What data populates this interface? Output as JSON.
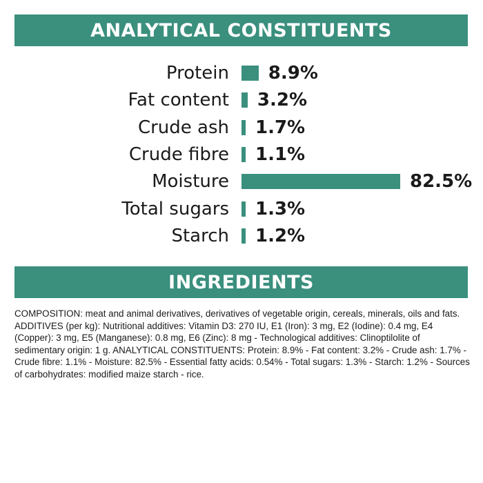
{
  "analytical": {
    "title": "ANALYTICAL CONSTITUENTS",
    "rows": [
      {
        "label": "Protein",
        "value_text": "8.9%"
      },
      {
        "label": "Fat content",
        "value_text": "3.2%"
      },
      {
        "label": "Crude ash",
        "value_text": "1.7%"
      },
      {
        "label": "Crude fibre",
        "value_text": "1.1%"
      },
      {
        "label": "Moisture",
        "value_text": "82.5%"
      },
      {
        "label": "Total sugars",
        "value_text": "1.3%"
      },
      {
        "label": "Starch",
        "value_text": "1.2%"
      }
    ]
  },
  "chart_data": {
    "type": "bar",
    "title": "ANALYTICAL CONSTITUENTS",
    "categories": [
      "Protein",
      "Fat content",
      "Crude ash",
      "Crude fibre",
      "Moisture",
      "Total sugars",
      "Starch"
    ],
    "values": [
      8.9,
      3.2,
      1.7,
      1.1,
      82.5,
      1.3,
      1.2
    ],
    "orientation": "horizontal",
    "unit": "%",
    "grid": false,
    "color": "#3a8f7d"
  },
  "ingredients": {
    "title": "INGREDIENTS",
    "text": "COMPOSITION: meat and animal derivatives, derivatives of vegetable origin, cereals, minerals, oils and fats. ADDITIVES (per kg): Nutritional additives: Vitamin D3: 270 IU, E1 (Iron): 3 mg, E2 (Iodine): 0.4 mg, E4 (Copper): 3 mg, E5 (Manganese): 0.8 mg, E6 (Zinc): 8 mg - Technological additives: Clinoptilolite of sedimentary origin: 1 g. ANALYTICAL CONSTITUENTS: Protein: 8.9% - Fat content: 3.2% - Crude ash: 1.7% - Crude fibre: 1.1% - Moisture: 82.5% - Essential fatty acids: 0.54% - Total sugars: 1.3% - Starch: 1.2% - Sources of carbohydrates: modified maize starch - rice."
  },
  "colors": {
    "accent": "#3a8f7d",
    "text": "#1a1a1a",
    "background": "#ffffff"
  }
}
